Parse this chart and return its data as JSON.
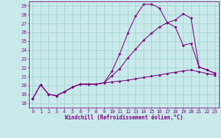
{
  "bg_color": "#c8eaea",
  "line_color": "#800080",
  "grid_color": "#a0cccc",
  "x_ticks": [
    0,
    1,
    2,
    3,
    4,
    5,
    6,
    7,
    8,
    9,
    10,
    11,
    12,
    13,
    14,
    15,
    16,
    17,
    18,
    19,
    20,
    21,
    22,
    23
  ],
  "y_ticks": [
    18,
    19,
    20,
    21,
    22,
    23,
    24,
    25,
    26,
    27,
    28,
    29
  ],
  "xlim": [
    -0.5,
    23.5
  ],
  "ylim": [
    17.5,
    29.5
  ],
  "xlabel": "Windchill (Refroidissement éolien,°C)",
  "tick_fontsize": 5.0,
  "xlabel_fontsize": 5.5,
  "s1": [
    18.5,
    20.1,
    19.0,
    18.85,
    19.3,
    19.8,
    20.15,
    20.15,
    20.15,
    20.3,
    20.4,
    20.5,
    20.6,
    20.75,
    20.9,
    21.05,
    21.2,
    21.35,
    21.5,
    21.65,
    21.75,
    21.55,
    21.35,
    21.2
  ],
  "s2": [
    18.5,
    20.1,
    19.0,
    18.85,
    19.3,
    19.8,
    20.15,
    20.15,
    20.15,
    20.3,
    21.1,
    21.9,
    23.1,
    24.1,
    25.1,
    25.9,
    26.6,
    27.1,
    27.4,
    28.1,
    27.6,
    22.1,
    21.75,
    21.4
  ],
  "s3": [
    18.5,
    20.1,
    19.0,
    18.85,
    19.3,
    19.8,
    20.15,
    20.15,
    20.15,
    20.3,
    21.6,
    23.6,
    25.9,
    27.85,
    29.15,
    29.2,
    28.75,
    27.1,
    26.6,
    24.55,
    24.75,
    22.1,
    21.75,
    21.4
  ]
}
